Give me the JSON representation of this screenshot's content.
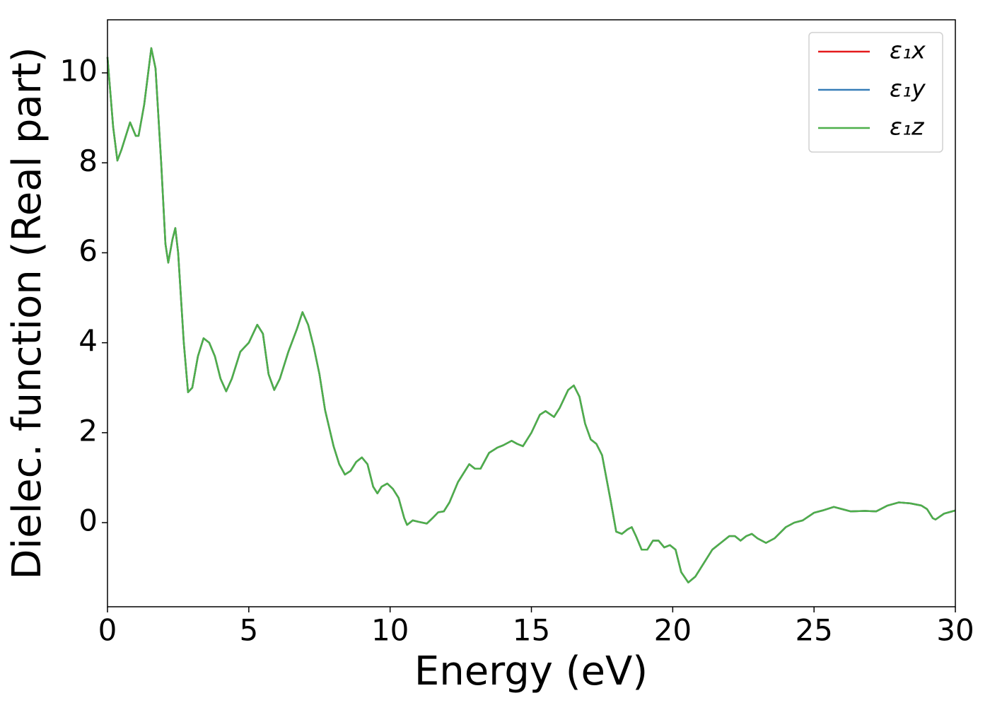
{
  "chart_data": {
    "type": "line",
    "x_label": "Energy (eV)",
    "y_label": "Dielec. function (Real part)",
    "x": [
      0,
      0.2,
      0.35,
      0.5,
      0.8,
      1.0,
      1.1,
      1.3,
      1.55,
      1.7,
      1.9,
      2.05,
      2.15,
      2.3,
      2.4,
      2.5,
      2.7,
      2.85,
      3.0,
      3.2,
      3.4,
      3.6,
      3.8,
      4.0,
      4.2,
      4.4,
      4.7,
      5.0,
      5.3,
      5.5,
      5.7,
      5.9,
      6.1,
      6.4,
      6.7,
      6.9,
      7.1,
      7.3,
      7.5,
      7.7,
      8.0,
      8.2,
      8.4,
      8.6,
      8.8,
      9.0,
      9.2,
      9.4,
      9.55,
      9.7,
      9.9,
      10.1,
      10.3,
      10.5,
      10.6,
      10.8,
      11.0,
      11.3,
      11.5,
      11.7,
      11.9,
      12.1,
      12.4,
      12.6,
      12.8,
      13.0,
      13.2,
      13.5,
      13.8,
      14.0,
      14.3,
      14.5,
      14.7,
      15.0,
      15.3,
      15.5,
      15.8,
      16.0,
      16.3,
      16.5,
      16.7,
      16.9,
      17.1,
      17.3,
      17.5,
      17.8,
      18.0,
      18.2,
      18.4,
      18.55,
      18.7,
      18.9,
      19.1,
      19.3,
      19.5,
      19.7,
      19.9,
      20.1,
      20.3,
      20.55,
      20.8,
      21.0,
      21.4,
      21.7,
      22.0,
      22.2,
      22.4,
      22.6,
      22.8,
      23.0,
      23.3,
      23.6,
      24.0,
      24.3,
      24.6,
      25.0,
      25.3,
      25.7,
      26.0,
      26.3,
      26.8,
      27.2,
      27.6,
      28.0,
      28.4,
      28.8,
      29.0,
      29.2,
      29.3,
      29.6,
      30.0
    ],
    "series": [
      {
        "name": "ε₁x",
        "color": "#e41a1c",
        "values": [
          10.35,
          8.8,
          8.05,
          8.3,
          8.9,
          8.6,
          8.6,
          9.3,
          10.55,
          10.1,
          8.0,
          6.2,
          5.78,
          6.3,
          6.55,
          6.0,
          4.0,
          2.9,
          3.0,
          3.7,
          4.1,
          4.0,
          3.7,
          3.2,
          2.92,
          3.2,
          3.8,
          4.0,
          4.4,
          4.2,
          3.3,
          2.95,
          3.2,
          3.8,
          4.3,
          4.68,
          4.4,
          3.9,
          3.3,
          2.5,
          1.7,
          1.3,
          1.07,
          1.15,
          1.35,
          1.45,
          1.3,
          0.8,
          0.65,
          0.8,
          0.87,
          0.75,
          0.55,
          0.1,
          -0.05,
          0.05,
          0.02,
          -0.02,
          0.1,
          0.23,
          0.25,
          0.45,
          0.9,
          1.1,
          1.3,
          1.2,
          1.2,
          1.55,
          1.67,
          1.72,
          1.82,
          1.75,
          1.7,
          2.0,
          2.4,
          2.48,
          2.35,
          2.55,
          2.95,
          3.05,
          2.8,
          2.2,
          1.85,
          1.75,
          1.5,
          0.5,
          -0.2,
          -0.25,
          -0.15,
          -0.1,
          -0.3,
          -0.6,
          -0.6,
          -0.4,
          -0.4,
          -0.55,
          -0.5,
          -0.6,
          -1.1,
          -1.33,
          -1.2,
          -1.0,
          -0.6,
          -0.45,
          -0.3,
          -0.3,
          -0.4,
          -0.3,
          -0.25,
          -0.35,
          -0.45,
          -0.35,
          -0.1,
          0.0,
          0.05,
          0.22,
          0.27,
          0.35,
          0.3,
          0.25,
          0.26,
          0.25,
          0.38,
          0.45,
          0.43,
          0.38,
          0.3,
          0.1,
          0.07,
          0.2,
          0.27
        ]
      },
      {
        "name": "ε₁y",
        "color": "#377eb8",
        "values": [
          10.35,
          8.8,
          8.05,
          8.3,
          8.9,
          8.6,
          8.6,
          9.3,
          10.55,
          10.1,
          8.0,
          6.2,
          5.78,
          6.3,
          6.55,
          6.0,
          4.0,
          2.9,
          3.0,
          3.7,
          4.1,
          4.0,
          3.7,
          3.2,
          2.92,
          3.2,
          3.8,
          4.0,
          4.4,
          4.2,
          3.3,
          2.95,
          3.2,
          3.8,
          4.3,
          4.68,
          4.4,
          3.9,
          3.3,
          2.5,
          1.7,
          1.3,
          1.07,
          1.15,
          1.35,
          1.45,
          1.3,
          0.8,
          0.65,
          0.8,
          0.87,
          0.75,
          0.55,
          0.1,
          -0.05,
          0.05,
          0.02,
          -0.02,
          0.1,
          0.23,
          0.25,
          0.45,
          0.9,
          1.1,
          1.3,
          1.2,
          1.2,
          1.55,
          1.67,
          1.72,
          1.82,
          1.75,
          1.7,
          2.0,
          2.4,
          2.48,
          2.35,
          2.55,
          2.95,
          3.05,
          2.8,
          2.2,
          1.85,
          1.75,
          1.5,
          0.5,
          -0.2,
          -0.25,
          -0.15,
          -0.1,
          -0.3,
          -0.6,
          -0.6,
          -0.4,
          -0.4,
          -0.55,
          -0.5,
          -0.6,
          -1.1,
          -1.33,
          -1.2,
          -1.0,
          -0.6,
          -0.45,
          -0.3,
          -0.3,
          -0.4,
          -0.3,
          -0.25,
          -0.35,
          -0.45,
          -0.35,
          -0.1,
          0.0,
          0.05,
          0.22,
          0.27,
          0.35,
          0.3,
          0.25,
          0.26,
          0.25,
          0.38,
          0.45,
          0.43,
          0.38,
          0.3,
          0.1,
          0.07,
          0.2,
          0.27
        ]
      },
      {
        "name": "ε₁z",
        "color": "#4daf4a",
        "values": [
          10.35,
          8.8,
          8.05,
          8.3,
          8.9,
          8.6,
          8.6,
          9.3,
          10.55,
          10.1,
          8.0,
          6.2,
          5.78,
          6.3,
          6.55,
          6.0,
          4.0,
          2.9,
          3.0,
          3.7,
          4.1,
          4.0,
          3.7,
          3.2,
          2.92,
          3.2,
          3.8,
          4.0,
          4.4,
          4.2,
          3.3,
          2.95,
          3.2,
          3.8,
          4.3,
          4.68,
          4.4,
          3.9,
          3.3,
          2.5,
          1.7,
          1.3,
          1.07,
          1.15,
          1.35,
          1.45,
          1.3,
          0.8,
          0.65,
          0.8,
          0.87,
          0.75,
          0.55,
          0.1,
          -0.05,
          0.05,
          0.02,
          -0.02,
          0.1,
          0.23,
          0.25,
          0.45,
          0.9,
          1.1,
          1.3,
          1.2,
          1.2,
          1.55,
          1.67,
          1.72,
          1.82,
          1.75,
          1.7,
          2.0,
          2.4,
          2.48,
          2.35,
          2.55,
          2.95,
          3.05,
          2.8,
          2.2,
          1.85,
          1.75,
          1.5,
          0.5,
          -0.2,
          -0.25,
          -0.15,
          -0.1,
          -0.3,
          -0.6,
          -0.6,
          -0.4,
          -0.4,
          -0.55,
          -0.5,
          -0.6,
          -1.1,
          -1.33,
          -1.2,
          -1.0,
          -0.6,
          -0.45,
          -0.3,
          -0.3,
          -0.4,
          -0.3,
          -0.25,
          -0.35,
          -0.45,
          -0.35,
          -0.1,
          0.0,
          0.05,
          0.22,
          0.27,
          0.35,
          0.3,
          0.25,
          0.26,
          0.25,
          0.38,
          0.45,
          0.43,
          0.38,
          0.3,
          0.1,
          0.07,
          0.2,
          0.27
        ]
      }
    ],
    "xlim": [
      0,
      30
    ],
    "xticks": [
      0,
      5,
      10,
      15,
      20,
      25,
      30
    ],
    "ylim": [
      -1.87,
      11.18
    ],
    "yticks": [
      0,
      2,
      4,
      6,
      8,
      10
    ],
    "grid": false,
    "legend": "upper right"
  }
}
